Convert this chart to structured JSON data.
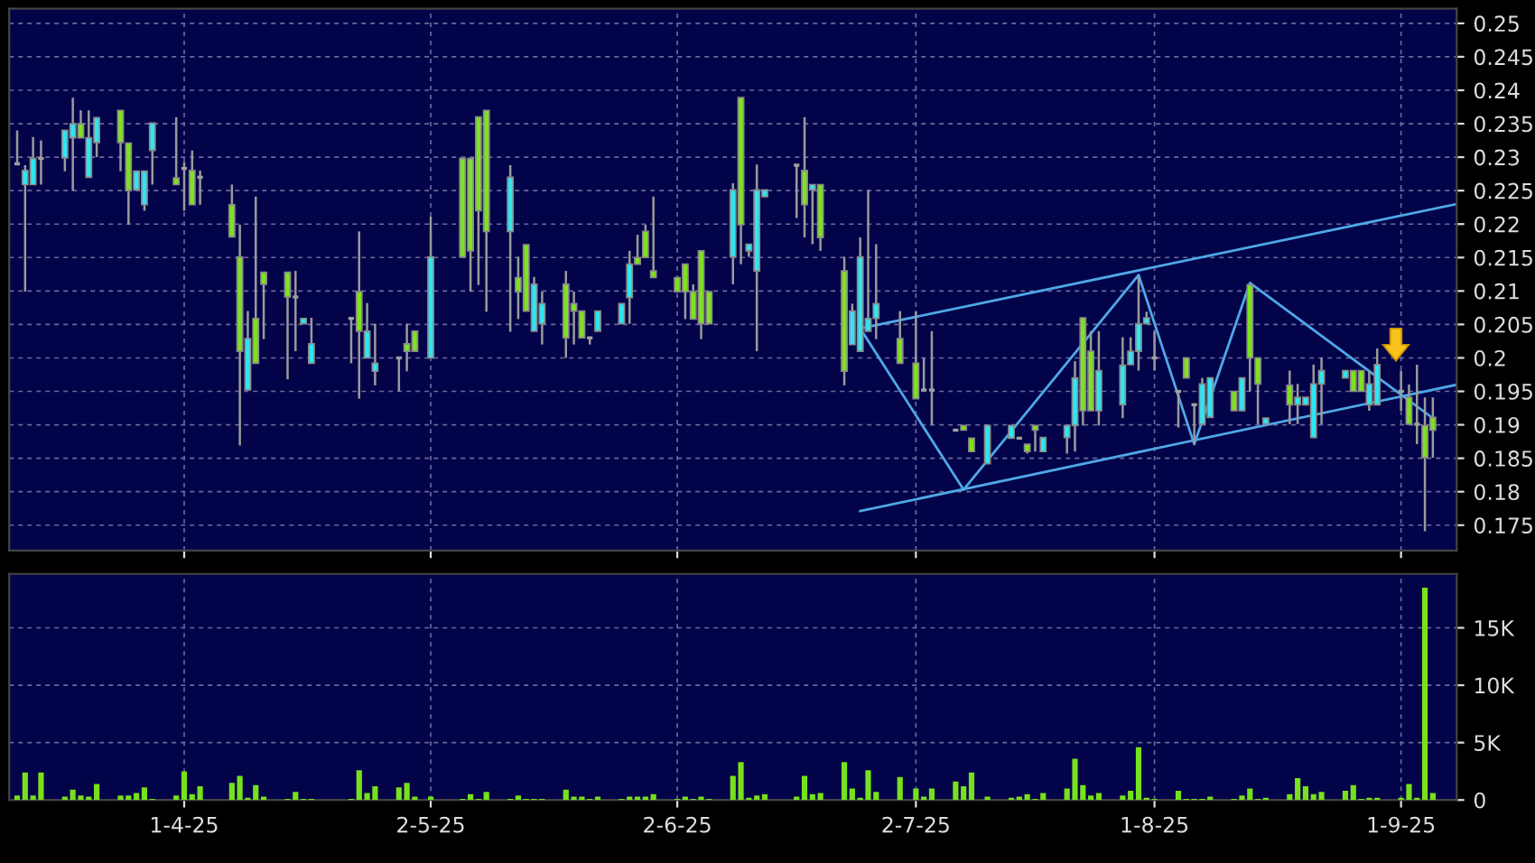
{
  "chart_data": [
    {
      "type": "candlestick",
      "x": [
        "2025-03-11",
        "2025-03-12",
        "2025-03-13",
        "2025-03-14",
        "2025-03-17",
        "2025-03-18",
        "2025-03-19",
        "2025-03-20",
        "2025-03-21",
        "2025-03-24",
        "2025-03-25",
        "2025-03-26",
        "2025-03-27",
        "2025-03-28",
        "2025-03-31",
        "2025-04-01",
        "2025-04-02",
        "2025-04-03",
        "2025-04-07",
        "2025-04-08",
        "2025-04-09",
        "2025-04-10",
        "2025-04-11",
        "2025-04-14",
        "2025-04-15",
        "2025-04-16",
        "2025-04-17",
        "2025-04-22",
        "2025-04-23",
        "2025-04-24",
        "2025-04-25",
        "2025-04-28",
        "2025-04-29",
        "2025-04-30",
        "2025-05-02",
        "2025-05-06",
        "2025-05-07",
        "2025-05-08",
        "2025-05-09",
        "2025-05-12",
        "2025-05-13",
        "2025-05-14",
        "2025-05-15",
        "2025-05-16",
        "2025-05-19",
        "2025-05-20",
        "2025-05-21",
        "2025-05-22",
        "2025-05-23",
        "2025-05-26",
        "2025-05-27",
        "2025-05-28",
        "2025-05-29",
        "2025-05-30",
        "2025-06-02",
        "2025-06-03",
        "2025-06-04",
        "2025-06-05",
        "2025-06-06",
        "2025-06-09",
        "2025-06-10",
        "2025-06-11",
        "2025-06-12",
        "2025-06-13",
        "2025-06-17",
        "2025-06-18",
        "2025-06-19",
        "2025-06-20",
        "2025-06-23",
        "2025-06-24",
        "2025-06-25",
        "2025-06-26",
        "2025-06-27",
        "2025-06-30",
        "2025-07-02",
        "2025-07-03",
        "2025-07-04",
        "2025-07-07",
        "2025-07-08",
        "2025-07-09",
        "2025-07-11",
        "2025-07-14",
        "2025-07-15",
        "2025-07-16",
        "2025-07-17",
        "2025-07-18",
        "2025-07-21",
        "2025-07-22",
        "2025-07-23",
        "2025-07-24",
        "2025-07-25",
        "2025-07-28",
        "2025-07-29",
        "2025-07-30",
        "2025-07-31",
        "2025-08-01",
        "2025-08-04",
        "2025-08-05",
        "2025-08-06",
        "2025-08-07",
        "2025-08-08",
        "2025-08-11",
        "2025-08-12",
        "2025-08-13",
        "2025-08-14",
        "2025-08-15",
        "2025-08-18",
        "2025-08-19",
        "2025-08-20",
        "2025-08-21",
        "2025-08-22",
        "2025-08-25",
        "2025-08-26",
        "2025-08-27",
        "2025-08-28",
        "2025-08-29",
        "2025-09-01",
        "2025-09-02",
        "2025-09-03",
        "2025-09-04",
        "2025-09-05"
      ],
      "ohlc": [
        [
          0.229,
          0.234,
          0.229,
          0.229
        ],
        [
          0.2259,
          0.2288,
          0.2099,
          0.228
        ],
        [
          0.2259,
          0.233,
          0.2259,
          0.2298
        ],
        [
          0.2298,
          0.2325,
          0.2259,
          0.2298
        ],
        [
          0.2299,
          0.234,
          0.2279,
          0.234
        ],
        [
          0.2329,
          0.2389,
          0.225,
          0.235
        ],
        [
          0.235,
          0.237,
          0.2329,
          0.2329
        ],
        [
          0.227,
          0.237,
          0.227,
          0.2329
        ],
        [
          0.2322,
          0.2359,
          0.23,
          0.2359
        ],
        [
          0.237,
          0.237,
          0.2279,
          0.2322
        ],
        [
          0.2321,
          0.2321,
          0.2199,
          0.225
        ],
        [
          0.2251,
          0.2279,
          0.2251,
          0.2279
        ],
        [
          0.2229,
          0.2279,
          0.222,
          0.2279
        ],
        [
          0.231,
          0.2351,
          0.2259,
          0.2351
        ],
        [
          0.2269,
          0.236,
          0.2259,
          0.2259
        ],
        [
          0.2283,
          0.2292,
          0.222,
          0.2283
        ],
        [
          0.228,
          0.231,
          0.2229,
          0.2229
        ],
        [
          0.227,
          0.228,
          0.2229,
          0.227
        ],
        [
          0.2229,
          0.2259,
          0.2181,
          0.2181
        ],
        [
          0.2151,
          0.2199,
          0.1869,
          0.201
        ],
        [
          0.1952,
          0.207,
          0.1952,
          0.2029
        ],
        [
          0.2059,
          0.2241,
          0.1992,
          0.1992
        ],
        [
          0.2128,
          0.2128,
          0.2028,
          0.211
        ],
        [
          0.2128,
          0.2128,
          0.1968,
          0.2091
        ],
        [
          0.2091,
          0.213,
          0.201,
          0.2091
        ],
        [
          0.2051,
          0.2059,
          0.2051,
          0.2059
        ],
        [
          0.1992,
          0.206,
          0.1992,
          0.2021
        ],
        [
          0.2059,
          0.2059,
          0.1992,
          0.2059
        ],
        [
          0.2099,
          0.2189,
          0.1939,
          0.204
        ],
        [
          0.2,
          0.2082,
          0.2,
          0.204
        ],
        [
          0.198,
          0.2051,
          0.1959,
          0.1992
        ],
        [
          0.2,
          0.2,
          0.195,
          0.2
        ],
        [
          0.2021,
          0.2051,
          0.198,
          0.201
        ],
        [
          0.204,
          0.204,
          0.201,
          0.201
        ],
        [
          0.2,
          0.2211,
          0.2,
          0.2151
        ],
        [
          0.2298,
          0.2298,
          0.2151,
          0.2151
        ],
        [
          0.2298,
          0.2298,
          0.2099,
          0.216
        ],
        [
          0.236,
          0.236,
          0.2109,
          0.222
        ],
        [
          0.237,
          0.237,
          0.2069,
          0.2189
        ],
        [
          0.2189,
          0.2288,
          0.2039,
          0.227
        ],
        [
          0.212,
          0.2151,
          0.2058,
          0.2099
        ],
        [
          0.2169,
          0.2169,
          0.207,
          0.207
        ],
        [
          0.204,
          0.2121,
          0.204,
          0.211
        ],
        [
          0.2051,
          0.2099,
          0.202,
          0.2081
        ],
        [
          0.211,
          0.213,
          0.2,
          0.203
        ],
        [
          0.2081,
          0.2099,
          0.202,
          0.207
        ],
        [
          0.207,
          0.207,
          0.203,
          0.203
        ],
        [
          0.203,
          0.203,
          0.202,
          0.203
        ],
        [
          0.204,
          0.207,
          0.204,
          0.207
        ],
        [
          0.2051,
          0.2081,
          0.2051,
          0.2081
        ],
        [
          0.209,
          0.216,
          0.2051,
          0.214
        ],
        [
          0.215,
          0.2184,
          0.214,
          0.214
        ],
        [
          0.2189,
          0.2199,
          0.215,
          0.215
        ],
        [
          0.213,
          0.2241,
          0.212,
          0.212
        ],
        [
          0.212,
          0.212,
          0.2099,
          0.2099
        ],
        [
          0.214,
          0.214,
          0.2058,
          0.2099
        ],
        [
          0.2099,
          0.211,
          0.2058,
          0.2058
        ],
        [
          0.216,
          0.216,
          0.2028,
          0.2051
        ],
        [
          0.2099,
          0.2099,
          0.2051,
          0.2051
        ],
        [
          0.2151,
          0.2261,
          0.211,
          0.2251
        ],
        [
          0.2389,
          0.2389,
          0.214,
          0.2199
        ],
        [
          0.216,
          0.217,
          0.2151,
          0.217
        ],
        [
          0.213,
          0.2289,
          0.201,
          0.2251
        ],
        [
          0.2241,
          0.2251,
          0.2241,
          0.2251
        ],
        [
          0.2288,
          0.2288,
          0.2209,
          0.2288
        ],
        [
          0.228,
          0.236,
          0.218,
          0.2229
        ],
        [
          0.2251,
          0.2259,
          0.217,
          0.2259
        ],
        [
          0.2259,
          0.2259,
          0.216,
          0.218
        ],
        [
          0.213,
          0.2151,
          0.1959,
          0.198
        ],
        [
          0.202,
          0.2081,
          0.202,
          0.207
        ],
        [
          0.201,
          0.218,
          0.201,
          0.2151
        ],
        [
          0.204,
          0.2251,
          0.204,
          0.2059
        ],
        [
          0.2059,
          0.217,
          0.2028,
          0.2081
        ],
        [
          0.2029,
          0.207,
          0.1992,
          0.1992
        ],
        [
          0.1992,
          0.207,
          0.1939,
          0.1939
        ],
        [
          0.1952,
          0.2,
          0.1952,
          0.1952
        ],
        [
          0.1952,
          0.204,
          0.19,
          0.1952
        ],
        [
          0.1892,
          0.1892,
          0.1892,
          0.1892
        ],
        [
          0.1899,
          0.1899,
          0.1892,
          0.1892
        ],
        [
          0.188,
          0.188,
          0.186,
          0.186
        ],
        [
          0.1842,
          0.1899,
          0.1842,
          0.1899
        ],
        [
          0.188,
          0.1899,
          0.188,
          0.1899
        ],
        [
          0.188,
          0.188,
          0.188,
          0.188
        ],
        [
          0.1871,
          0.1871,
          0.1857,
          0.186
        ],
        [
          0.1899,
          0.1899,
          0.186,
          0.1892
        ],
        [
          0.186,
          0.1881,
          0.186,
          0.1881
        ],
        [
          0.1881,
          0.1899,
          0.1857,
          0.1899
        ],
        [
          0.1899,
          0.1995,
          0.186,
          0.197
        ],
        [
          0.206,
          0.206,
          0.1899,
          0.1921
        ],
        [
          0.201,
          0.204,
          0.1921,
          0.1921
        ],
        [
          0.1921,
          0.204,
          0.1899,
          0.1981
        ],
        [
          0.193,
          0.2031,
          0.191,
          0.1989
        ],
        [
          0.199,
          0.2031,
          0.199,
          0.201
        ],
        [
          0.201,
          0.2121,
          0.1981,
          0.2051
        ],
        [
          0.2051,
          0.2069,
          0.2051,
          0.206
        ],
        [
          0.2,
          0.204,
          0.1981,
          0.2
        ],
        [
          0.195,
          0.195,
          0.1896,
          0.195
        ],
        [
          0.2,
          0.2,
          0.197,
          0.197
        ],
        [
          0.193,
          0.193,
          0.1871,
          0.193
        ],
        [
          0.1901,
          0.197,
          0.1901,
          0.1961
        ],
        [
          0.1911,
          0.197,
          0.1911,
          0.197
        ],
        [
          0.195,
          0.195,
          0.1921,
          0.1921
        ],
        [
          0.1921,
          0.197,
          0.1921,
          0.197
        ],
        [
          0.2109,
          0.2109,
          0.195,
          0.2
        ],
        [
          0.2,
          0.2,
          0.1901,
          0.1961
        ],
        [
          0.1901,
          0.191,
          0.1901,
          0.191
        ],
        [
          0.1959,
          0.1981,
          0.1901,
          0.193
        ],
        [
          0.193,
          0.1961,
          0.1901,
          0.1941
        ],
        [
          0.193,
          0.1941,
          0.193,
          0.1941
        ],
        [
          0.1881,
          0.199,
          0.1881,
          0.1961
        ],
        [
          0.1961,
          0.2,
          0.1901,
          0.1981
        ],
        [
          0.197,
          0.1981,
          0.197,
          0.1981
        ],
        [
          0.1981,
          0.1981,
          0.195,
          0.195
        ],
        [
          0.1981,
          0.1981,
          0.195,
          0.195
        ],
        [
          0.193,
          0.1981,
          0.1921,
          0.1961
        ],
        [
          0.193,
          0.2014,
          0.193,
          0.199
        ],
        [
          0.195,
          0.1981,
          0.1921,
          0.195
        ],
        [
          0.1941,
          0.196,
          0.1901,
          0.1901
        ],
        [
          0.1901,
          0.199,
          0.1871,
          0.1901
        ],
        [
          0.1899,
          0.1941,
          0.1741,
          0.1851
        ],
        [
          0.1911,
          0.1941,
          0.1851,
          0.1892
        ]
      ],
      "colors": [
        "#a0a0a0",
        "#2ee6f2",
        "#2ee6f2",
        "#a0a0a0",
        "#2ee6f2",
        "#2ee6f2",
        "#7ee21f",
        "#2ee6f2",
        "#2ee6f2",
        "#7ee21f",
        "#7ee21f",
        "#2ee6f2",
        "#2ee6f2",
        "#2ee6f2",
        "#7ee21f",
        "#a0a0a0",
        "#7ee21f",
        "#a0a0a0",
        "#7ee21f",
        "#7ee21f",
        "#2ee6f2",
        "#7ee21f",
        "#7ee21f",
        "#7ee21f",
        "#a0a0a0",
        "#2ee6f2",
        "#2ee6f2",
        "#a0a0a0",
        "#7ee21f",
        "#2ee6f2",
        "#2ee6f2",
        "#a0a0a0",
        "#7ee21f",
        "#7ee21f",
        "#2ee6f2",
        "#7ee21f",
        "#7ee21f",
        "#7ee21f",
        "#7ee21f",
        "#2ee6f2",
        "#7ee21f",
        "#7ee21f",
        "#2ee6f2",
        "#2ee6f2",
        "#7ee21f",
        "#7ee21f",
        "#7ee21f",
        "#a0a0a0",
        "#2ee6f2",
        "#2ee6f2",
        "#2ee6f2",
        "#7ee21f",
        "#7ee21f",
        "#7ee21f",
        "#7ee21f",
        "#7ee21f",
        "#7ee21f",
        "#7ee21f",
        "#7ee21f",
        "#2ee6f2",
        "#7ee21f",
        "#2ee6f2",
        "#2ee6f2",
        "#2ee6f2",
        "#a0a0a0",
        "#7ee21f",
        "#2ee6f2",
        "#7ee21f",
        "#7ee21f",
        "#2ee6f2",
        "#2ee6f2",
        "#2ee6f2",
        "#2ee6f2",
        "#7ee21f",
        "#7ee21f",
        "#a0a0a0",
        "#a0a0a0",
        "#a0a0a0",
        "#7ee21f",
        "#7ee21f",
        "#2ee6f2",
        "#2ee6f2",
        "#a0a0a0",
        "#7ee21f",
        "#7ee21f",
        "#2ee6f2",
        "#2ee6f2",
        "#2ee6f2",
        "#7ee21f",
        "#7ee21f",
        "#2ee6f2",
        "#2ee6f2",
        "#2ee6f2",
        "#2ee6f2",
        "#2ee6f2",
        "#a0a0a0",
        "#a0a0a0",
        "#7ee21f",
        "#a0a0a0",
        "#2ee6f2",
        "#2ee6f2",
        "#7ee21f",
        "#2ee6f2",
        "#7ee21f",
        "#7ee21f",
        "#2ee6f2",
        "#7ee21f",
        "#2ee6f2",
        "#2ee6f2",
        "#2ee6f2",
        "#2ee6f2",
        "#2ee6f2",
        "#7ee21f",
        "#7ee21f",
        "#2ee6f2",
        "#2ee6f2",
        "#a0a0a0",
        "#7ee21f",
        "#a0a0a0",
        "#7ee21f",
        "#7ee21f"
      ],
      "series": [
        {
          "type": "line",
          "color": "#4fa8e6",
          "x": [
            "2025-06-25",
            "2025-09-08"
          ],
          "values": [
            0.2044,
            0.223
          ]
        },
        {
          "type": "line",
          "color": "#4fa8e6",
          "x": [
            "2025-06-25",
            "2025-09-08"
          ],
          "values": [
            0.1771,
            0.196
          ]
        },
        {
          "type": "line",
          "color": "#4fa8e6",
          "x": [
            "2025-06-25",
            "2025-07-08",
            "2025-07-30",
            "2025-08-06",
            "2025-08-13",
            "2025-09-05"
          ],
          "values": [
            0.2044,
            0.1803,
            0.2124,
            0.1871,
            0.2112,
            0.191
          ]
        }
      ],
      "xlim": [
        "2025-03-10",
        "2025-09-08"
      ],
      "xticks": [
        {
          "value": "2025-04-01",
          "label": null
        },
        {
          "value": "2025-05-02",
          "label": null
        },
        {
          "value": "2025-06-02",
          "label": null
        },
        {
          "value": "2025-07-02",
          "label": null
        },
        {
          "value": "2025-08-01",
          "label": null
        },
        {
          "value": "2025-09-01",
          "label": null
        }
      ],
      "ylim": [
        0.1712,
        0.2522
      ],
      "yticks": [
        0.175,
        0.18,
        0.185,
        0.19,
        0.195,
        0.2,
        0.205,
        0.21,
        0.215,
        0.22,
        0.225,
        0.23,
        0.235,
        0.24,
        0.245,
        0.25
      ],
      "grid": true,
      "tick_labels": "y"
    },
    {
      "type": "bar",
      "x": [
        "2025-03-11",
        "2025-03-12",
        "2025-03-13",
        "2025-03-14",
        "2025-03-17",
        "2025-03-18",
        "2025-03-19",
        "2025-03-20",
        "2025-03-21",
        "2025-03-24",
        "2025-03-25",
        "2025-03-26",
        "2025-03-27",
        "2025-03-28",
        "2025-03-31",
        "2025-04-01",
        "2025-04-02",
        "2025-04-03",
        "2025-04-07",
        "2025-04-08",
        "2025-04-09",
        "2025-04-10",
        "2025-04-11",
        "2025-04-14",
        "2025-04-15",
        "2025-04-16",
        "2025-04-17",
        "2025-04-22",
        "2025-04-23",
        "2025-04-24",
        "2025-04-25",
        "2025-04-28",
        "2025-04-29",
        "2025-04-30",
        "2025-05-02",
        "2025-05-06",
        "2025-05-07",
        "2025-05-08",
        "2025-05-09",
        "2025-05-12",
        "2025-05-13",
        "2025-05-14",
        "2025-05-15",
        "2025-05-16",
        "2025-05-19",
        "2025-05-20",
        "2025-05-21",
        "2025-05-22",
        "2025-05-23",
        "2025-05-26",
        "2025-05-27",
        "2025-05-28",
        "2025-05-29",
        "2025-05-30",
        "2025-06-02",
        "2025-06-03",
        "2025-06-04",
        "2025-06-05",
        "2025-06-06",
        "2025-06-09",
        "2025-06-10",
        "2025-06-11",
        "2025-06-12",
        "2025-06-13",
        "2025-06-17",
        "2025-06-18",
        "2025-06-19",
        "2025-06-20",
        "2025-06-23",
        "2025-06-24",
        "2025-06-25",
        "2025-06-26",
        "2025-06-27",
        "2025-06-30",
        "2025-07-02",
        "2025-07-03",
        "2025-07-04",
        "2025-07-07",
        "2025-07-08",
        "2025-07-09",
        "2025-07-11",
        "2025-07-14",
        "2025-07-15",
        "2025-07-16",
        "2025-07-17",
        "2025-07-18",
        "2025-07-21",
        "2025-07-22",
        "2025-07-23",
        "2025-07-24",
        "2025-07-25",
        "2025-07-28",
        "2025-07-29",
        "2025-07-30",
        "2025-07-31",
        "2025-08-01",
        "2025-08-04",
        "2025-08-05",
        "2025-08-06",
        "2025-08-07",
        "2025-08-08",
        "2025-08-11",
        "2025-08-12",
        "2025-08-13",
        "2025-08-14",
        "2025-08-15",
        "2025-08-18",
        "2025-08-19",
        "2025-08-20",
        "2025-08-21",
        "2025-08-22",
        "2025-08-25",
        "2025-08-26",
        "2025-08-27",
        "2025-08-28",
        "2025-08-29",
        "2025-09-01",
        "2025-09-02",
        "2025-09-03",
        "2025-09-04",
        "2025-09-05"
      ],
      "values": [
        0.4,
        2.4,
        0.4,
        2.4,
        0.3,
        0.9,
        0.4,
        0.3,
        1.4,
        0.4,
        0.4,
        0.6,
        1.1,
        0.1,
        0.4,
        2.5,
        0.5,
        1.2,
        1.5,
        2.1,
        0.2,
        1.3,
        0.3,
        0.1,
        0.7,
        0.1,
        0.1,
        0.1,
        2.6,
        0.6,
        1.2,
        1.1,
        1.5,
        0.3,
        0.3,
        0.1,
        0.5,
        0.1,
        0.7,
        0.1,
        0.4,
        0.1,
        0.1,
        0.1,
        0.9,
        0.3,
        0.3,
        0.1,
        0.3,
        0.1,
        0.3,
        0.3,
        0.3,
        0.5,
        0.1,
        0.3,
        0.1,
        0.3,
        0.1,
        2.1,
        3.3,
        0.2,
        0.4,
        0.5,
        0.3,
        2.1,
        0.5,
        0.6,
        3.3,
        1.0,
        0.2,
        2.6,
        0.7,
        2.0,
        1.0,
        0.3,
        1.0,
        1.6,
        1.2,
        2.4,
        0.3,
        0.2,
        0.3,
        0.5,
        0.1,
        0.6,
        1.0,
        3.6,
        1.3,
        0.4,
        0.6,
        0.4,
        0.8,
        4.6,
        0.2,
        0.1,
        0.8,
        0.1,
        0.1,
        0.1,
        0.3,
        0.1,
        0.4,
        1.0,
        0.1,
        0.2,
        0.5,
        1.9,
        1.2,
        0.5,
        0.7,
        0.8,
        1.3,
        0.1,
        0.2,
        0.2,
        0.2,
        1.4,
        0.2,
        18.5,
        0.6
      ],
      "color": "#77e21c",
      "xlim": [
        "2025-03-10",
        "2025-09-08"
      ],
      "xticks": [
        {
          "value": "2025-04-01",
          "label": "1-4-25"
        },
        {
          "value": "2025-05-02",
          "label": "2-5-25"
        },
        {
          "value": "2025-06-02",
          "label": "2-6-25"
        },
        {
          "value": "2025-07-02",
          "label": "2-7-25"
        },
        {
          "value": "2025-08-01",
          "label": "1-8-25"
        },
        {
          "value": "2025-09-01",
          "label": "1-9-25"
        }
      ],
      "ylim": [
        0,
        19.7
      ],
      "yticks": [
        0,
        {
          "value": 5,
          "label": "5K"
        },
        {
          "value": 10,
          "label": "10K"
        },
        {
          "value": 15,
          "label": "15K"
        }
      ],
      "grid": true
    }
  ]
}
